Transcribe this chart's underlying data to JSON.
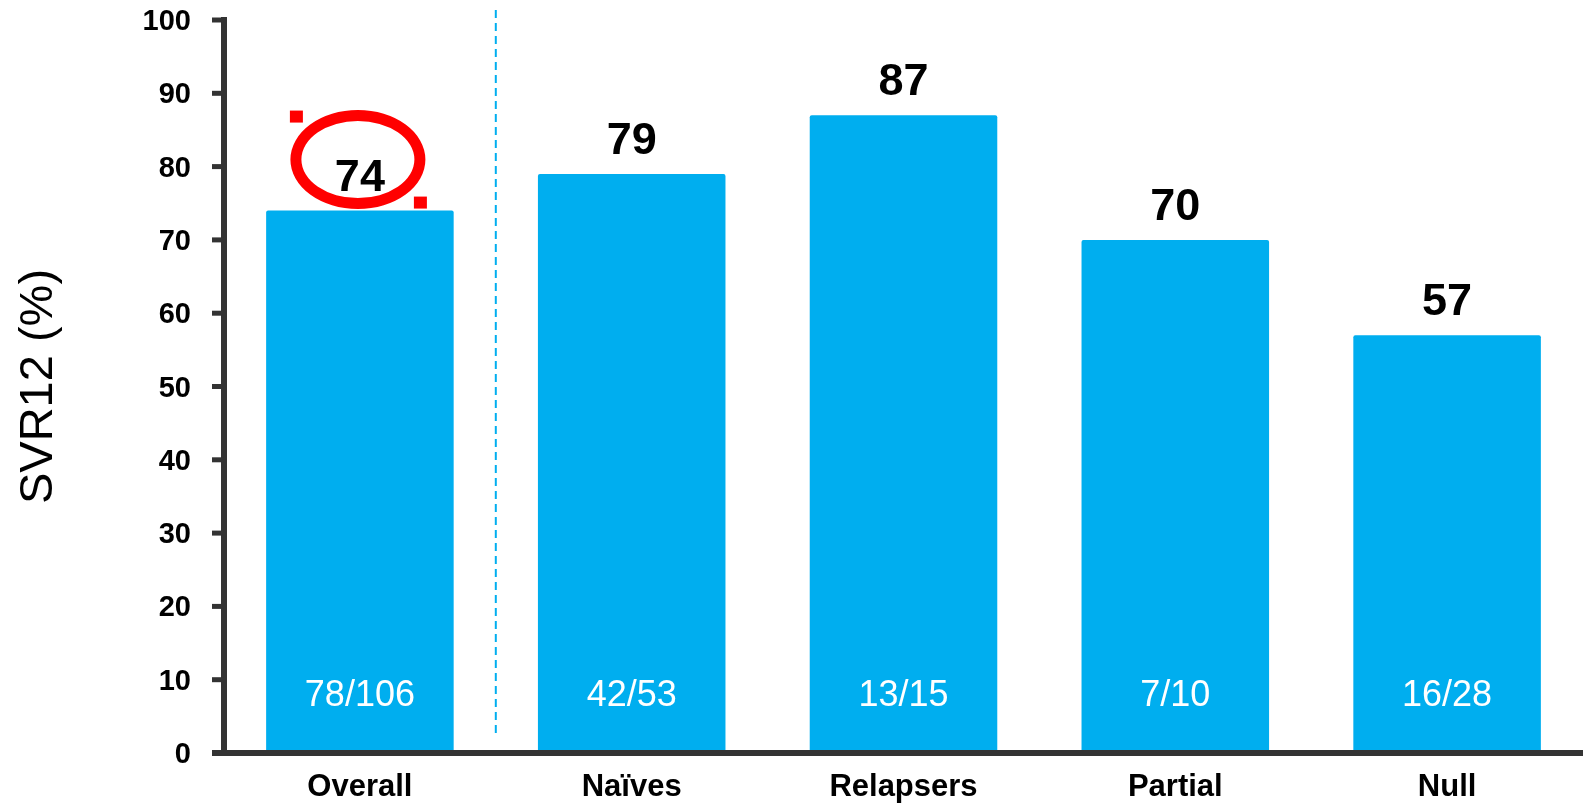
{
  "chart_data": {
    "type": "bar",
    "ylabel": "SVR12 (%)",
    "categories": [
      "Overall",
      "Naïves",
      "Relapsers",
      "Partial",
      "Null"
    ],
    "values": [
      74,
      79,
      87,
      70,
      57
    ],
    "color": "#00aeef",
    "ylim": [
      0,
      100
    ],
    "yticks": [
      0,
      10,
      20,
      30,
      40,
      50,
      60,
      70,
      80,
      90,
      100
    ],
    "grid": false,
    "data_labels": true,
    "annotations": [
      "78/106",
      "42/53",
      "13/15",
      "7/10",
      "16/28"
    ]
  }
}
